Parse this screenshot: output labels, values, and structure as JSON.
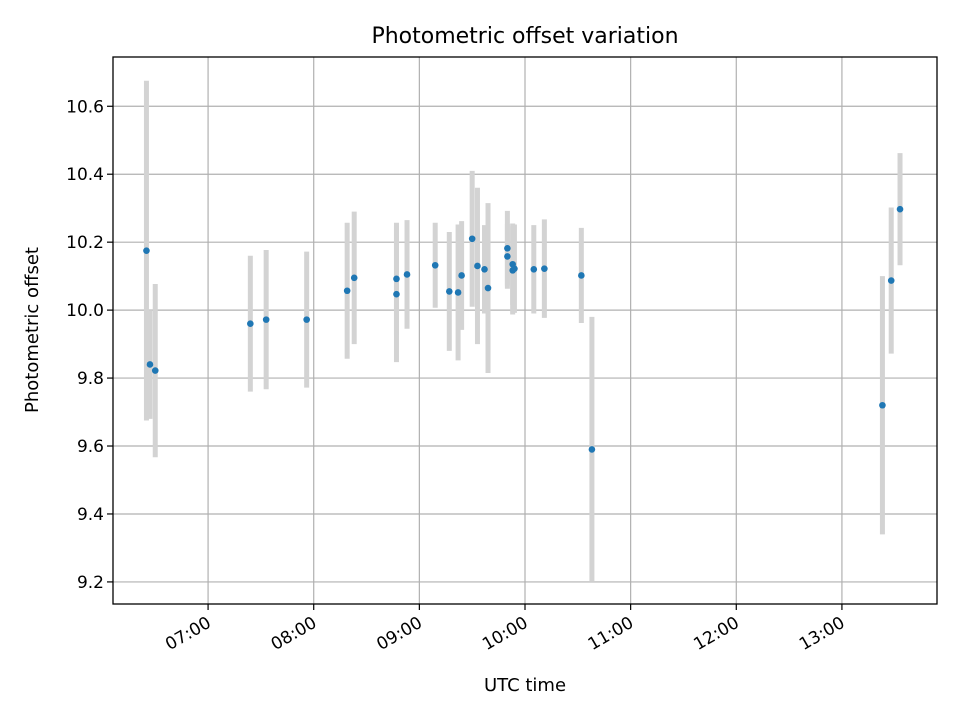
{
  "chart_data": {
    "type": "scatter",
    "title": "Photometric offset variation",
    "xlabel": "UTC time",
    "ylabel": "Photometric offset",
    "xlim": [
      "06:06",
      "13:54"
    ],
    "ylim": [
      9.135,
      10.745
    ],
    "x_ticks": [
      "07:00",
      "08:00",
      "09:00",
      "10:00",
      "11:00",
      "12:00",
      "13:00"
    ],
    "y_ticks": [
      "9.2",
      "9.4",
      "9.6",
      "9.8",
      "10.0",
      "10.2",
      "10.4",
      "10.6"
    ],
    "grid": true,
    "colors": {
      "points": "#1f77b4",
      "errorbars": "#d3d3d3",
      "grid": "#b0b0b0",
      "frame": "#000000"
    },
    "points": [
      {
        "x": "06:25",
        "y": 10.175,
        "err": 0.5
      },
      {
        "x": "06:27",
        "y": 9.84,
        "err": 0.16
      },
      {
        "x": "06:30",
        "y": 9.822,
        "err": 0.255
      },
      {
        "x": "07:24",
        "y": 9.96,
        "err": 0.2
      },
      {
        "x": "07:33",
        "y": 9.972,
        "err": 0.205
      },
      {
        "x": "07:56",
        "y": 9.972,
        "err": 0.2
      },
      {
        "x": "08:19",
        "y": 10.057,
        "err": 0.2
      },
      {
        "x": "08:23",
        "y": 10.095,
        "err": 0.195
      },
      {
        "x": "08:47",
        "y": 10.047,
        "err": 0.2
      },
      {
        "x": "08:47",
        "y": 10.092,
        "err": 0.165
      },
      {
        "x": "08:53",
        "y": 10.105,
        "err": 0.16
      },
      {
        "x": "09:09",
        "y": 10.132,
        "err": 0.125
      },
      {
        "x": "09:17",
        "y": 10.055,
        "err": 0.175
      },
      {
        "x": "09:22",
        "y": 10.052,
        "err": 0.2
      },
      {
        "x": "09:24",
        "y": 10.102,
        "err": 0.16
      },
      {
        "x": "09:30",
        "y": 10.21,
        "err": 0.2
      },
      {
        "x": "09:33",
        "y": 10.13,
        "err": 0.23
      },
      {
        "x": "09:37",
        "y": 10.12,
        "err": 0.13
      },
      {
        "x": "09:39",
        "y": 10.065,
        "err": 0.25
      },
      {
        "x": "09:50",
        "y": 10.182,
        "err": 0.11
      },
      {
        "x": "09:50",
        "y": 10.158,
        "err": 0.095
      },
      {
        "x": "09:53",
        "y": 10.135,
        "err": 0.12
      },
      {
        "x": "09:53",
        "y": 10.117,
        "err": 0.13
      },
      {
        "x": "09:54",
        "y": 10.122,
        "err": 0.13
      },
      {
        "x": "10:05",
        "y": 10.12,
        "err": 0.13
      },
      {
        "x": "10:11",
        "y": 10.122,
        "err": 0.145
      },
      {
        "x": "10:32",
        "y": 10.102,
        "err": 0.14
      },
      {
        "x": "10:38",
        "y": 9.59,
        "err": 0.39
      },
      {
        "x": "13:23",
        "y": 9.72,
        "err": 0.38
      },
      {
        "x": "13:28",
        "y": 10.087,
        "err": 0.215
      },
      {
        "x": "13:33",
        "y": 10.297,
        "err": 0.165
      }
    ]
  }
}
